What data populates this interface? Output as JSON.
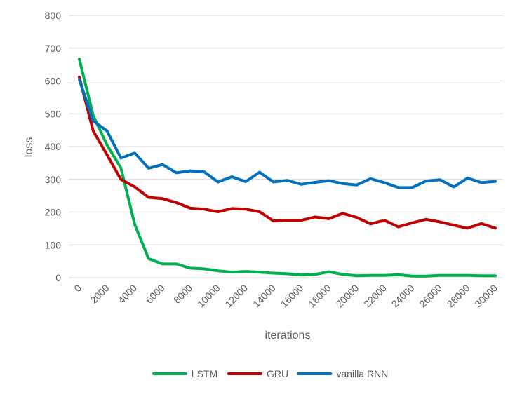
{
  "chart_data": {
    "type": "line",
    "title": "",
    "xlabel": "iterations",
    "ylabel": "loss",
    "ylim": [
      0,
      800
    ],
    "xlim": [
      0,
      30000
    ],
    "grid": true,
    "legend_position": "bottom",
    "x_ticks": [
      "0",
      "2000",
      "4000",
      "6000",
      "8000",
      "10000",
      "12000",
      "14000",
      "16000",
      "18000",
      "20000",
      "22000",
      "24000",
      "26000",
      "28000",
      "30000"
    ],
    "y_ticks": [
      "0",
      "100",
      "200",
      "300",
      "400",
      "500",
      "600",
      "700",
      "800"
    ],
    "x": [
      0,
      1000,
      2000,
      3000,
      4000,
      5000,
      6000,
      7000,
      8000,
      9000,
      10000,
      11000,
      12000,
      13000,
      14000,
      15000,
      16000,
      17000,
      18000,
      19000,
      20000,
      21000,
      22000,
      23000,
      24000,
      25000,
      26000,
      27000,
      28000,
      29000,
      30000
    ],
    "series": [
      {
        "name": "LSTM",
        "color": "#00b050",
        "values": [
          667,
          495,
          405,
          335,
          162,
          58,
          42,
          42,
          29,
          27,
          21,
          17,
          19,
          17,
          14,
          12,
          8,
          10,
          18,
          10,
          6,
          7,
          7,
          9,
          5,
          5,
          7,
          7,
          7,
          6,
          6
        ]
      },
      {
        "name": "GRU",
        "color": "#c00000",
        "values": [
          612,
          448,
          375,
          300,
          277,
          245,
          241,
          229,
          212,
          209,
          201,
          211,
          209,
          201,
          173,
          175,
          175,
          185,
          180,
          196,
          184,
          164,
          175,
          155,
          167,
          178,
          170,
          160,
          151,
          165,
          151
        ]
      },
      {
        "name": "vanilla RNN",
        "color": "#0070c0",
        "values": [
          605,
          478,
          448,
          365,
          380,
          334,
          345,
          320,
          326,
          323,
          292,
          308,
          293,
          322,
          292,
          297,
          285,
          291,
          296,
          287,
          283,
          302,
          290,
          275,
          275,
          295,
          299,
          277,
          304,
          290,
          294
        ]
      }
    ]
  }
}
